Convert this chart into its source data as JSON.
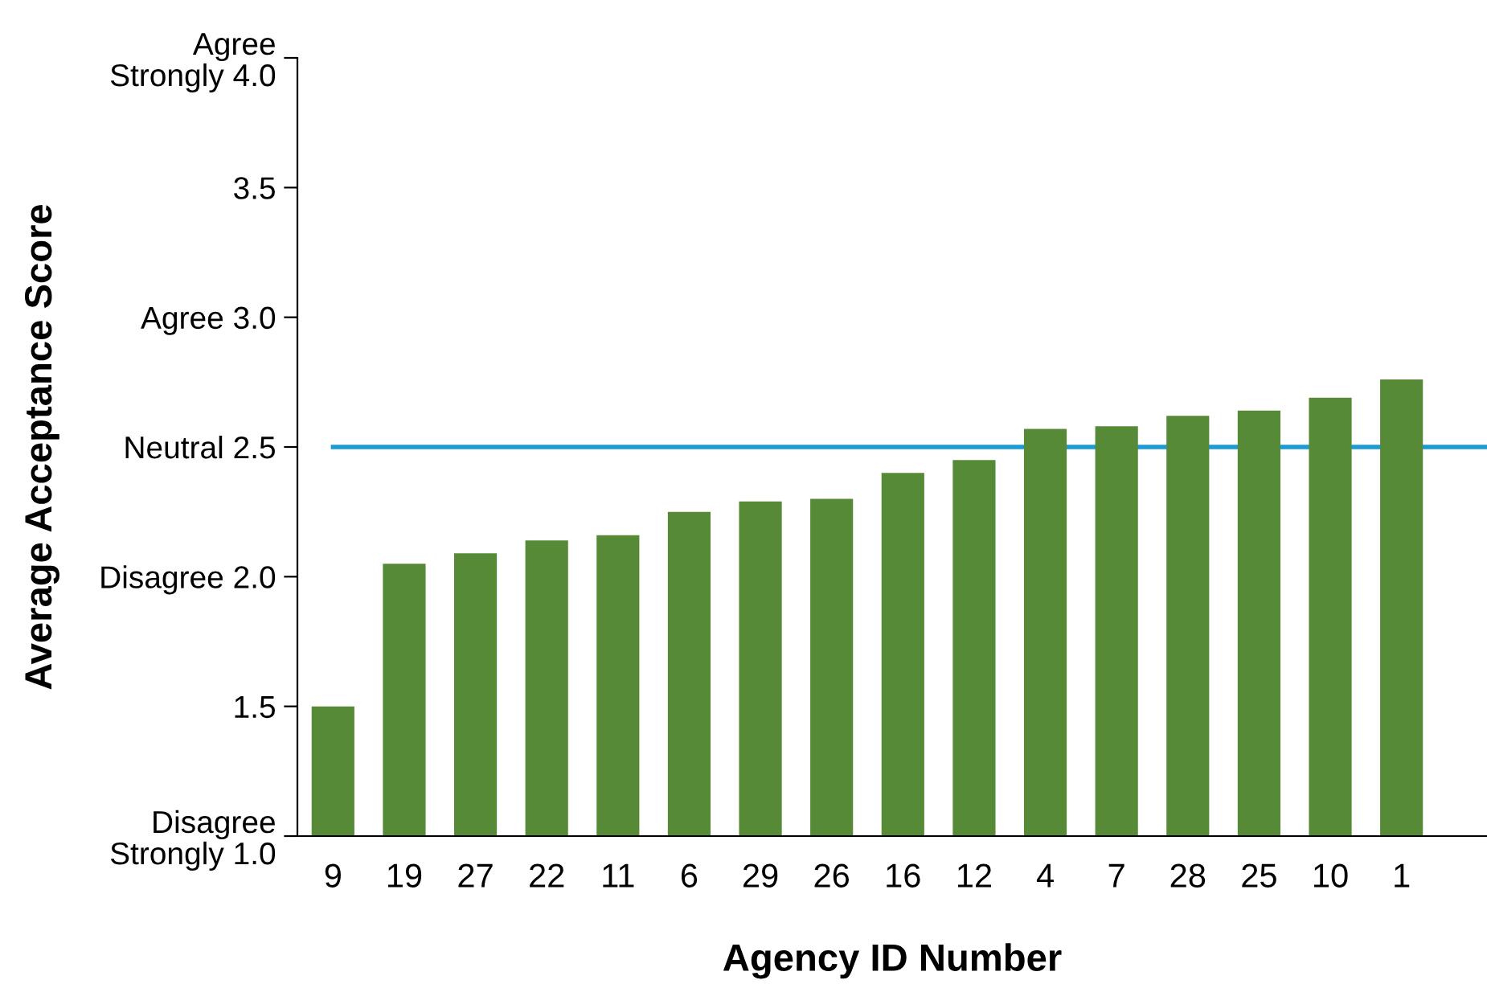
{
  "chart_data": {
    "type": "bar",
    "xlabel": "Agency ID Number",
    "ylabel": "Average Acceptance Score",
    "categories": [
      "9",
      "19",
      "27",
      "22",
      "11",
      "6",
      "29",
      "26",
      "16",
      "12",
      "4",
      "7",
      "28",
      "25",
      "10",
      "1"
    ],
    "values": [
      1.5,
      2.05,
      2.09,
      2.14,
      2.16,
      2.25,
      2.29,
      2.3,
      2.4,
      2.45,
      2.57,
      2.58,
      2.62,
      2.64,
      2.69,
      2.76
    ],
    "color": "#568a37",
    "ylim": [
      1.0,
      4.0
    ],
    "yticks": [
      {
        "value": 1.0,
        "label": "Disagree\nStrongly 1.0"
      },
      1.5,
      {
        "value": 2.0,
        "label": "Disagree 2.0"
      },
      {
        "value": 2.5,
        "label": "Neutral 2.5"
      },
      {
        "value": 3.0,
        "label": "Agree 3.0"
      },
      3.5,
      {
        "value": 4.0,
        "label": "Agree\nStrongly 4.0"
      }
    ],
    "ref_lines": [
      {
        "axis": "y",
        "value": 2.5,
        "color": "#1a9ad6"
      }
    ],
    "grid": false,
    "legend": false
  }
}
